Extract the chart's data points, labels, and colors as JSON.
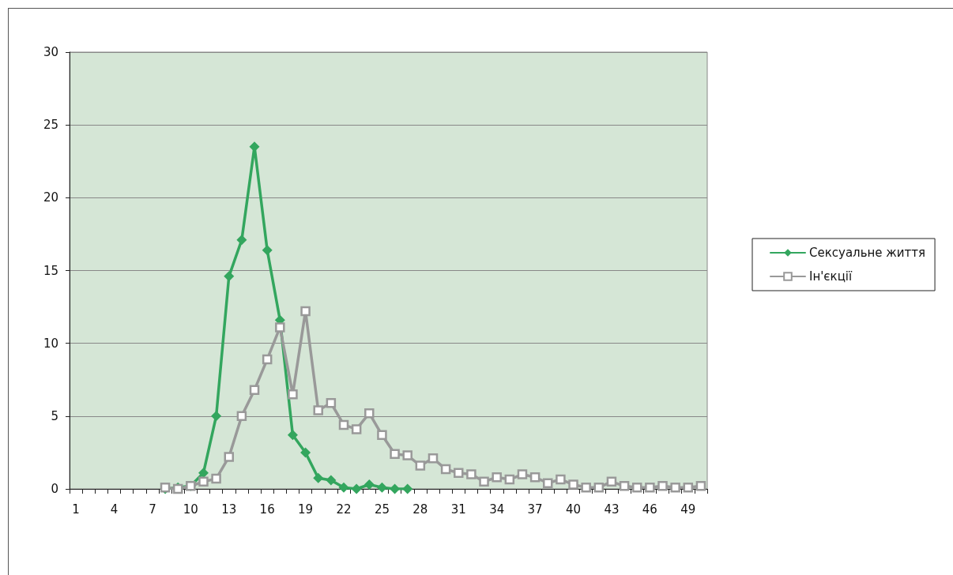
{
  "chart_data": {
    "type": "line",
    "categories": [
      "1",
      null,
      null,
      "4",
      null,
      null,
      "7",
      null,
      null,
      "10",
      null,
      null,
      "13",
      null,
      null,
      "16",
      null,
      null,
      "19",
      null,
      null,
      "22",
      null,
      null,
      "25",
      null,
      null,
      "28",
      null,
      null,
      "31",
      null,
      null,
      "34",
      null,
      null,
      "37",
      null,
      null,
      "40",
      null,
      null,
      "43",
      null,
      null,
      "46",
      null,
      null,
      "49",
      null
    ],
    "series": [
      {
        "name": "Сексуальне життя",
        "color": "#33a65e",
        "marker": "diamond",
        "values": [
          null,
          null,
          null,
          null,
          null,
          null,
          null,
          0,
          0.1,
          0.2,
          1.1,
          5.0,
          14.6,
          17.1,
          23.5,
          16.4,
          11.6,
          3.7,
          2.5,
          0.75,
          0.6,
          0.1,
          0,
          0.3,
          0.1,
          0,
          0,
          null,
          null,
          null,
          null,
          null,
          null,
          null,
          null,
          null,
          null,
          null,
          null,
          null,
          null,
          null,
          null,
          null,
          null,
          null,
          null,
          null,
          null,
          null
        ]
      },
      {
        "name": "Ін'єкції",
        "color": "#999999",
        "marker": "square",
        "values": [
          null,
          null,
          null,
          null,
          null,
          null,
          null,
          0.1,
          0,
          0.2,
          0.5,
          0.7,
          2.2,
          5.0,
          6.8,
          8.9,
          11.1,
          6.5,
          12.2,
          5.4,
          5.9,
          4.4,
          4.1,
          5.2,
          3.7,
          2.4,
          2.3,
          1.6,
          2.1,
          1.35,
          1.1,
          1.0,
          0.5,
          0.8,
          0.65,
          1.0,
          0.8,
          0.4,
          0.65,
          0.3,
          0.1,
          0.1,
          0.5,
          0.2,
          0.1,
          0.1,
          0.2,
          0.1,
          0.1,
          0.2
        ]
      }
    ],
    "ylim": [
      0,
      30
    ],
    "yticks": [
      0,
      5,
      10,
      15,
      20,
      25,
      30
    ],
    "grid": "y",
    "legend": "right",
    "line_style": "solid"
  }
}
